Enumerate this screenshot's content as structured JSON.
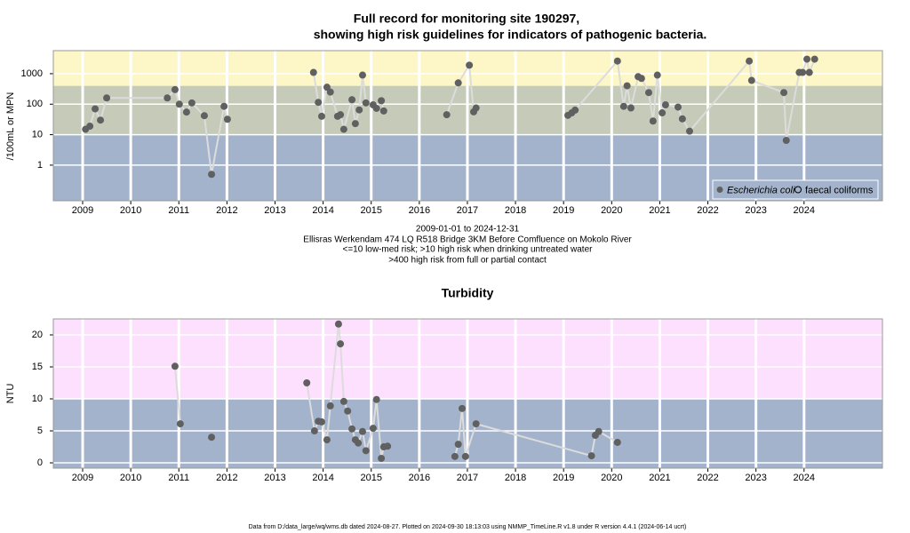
{
  "chart_data": [
    {
      "type": "line",
      "title": [
        "Full record for monitoring site 190297,",
        "showing high risk guidelines for indicators of pathogenic bacteria."
      ],
      "y_label": "/100mL or MPN",
      "notes": [
        "2009-01-01 to 2024-12-31",
        "Ellisras Werkendam 474 LQ R518 Bridge 3KM Before Comfluence on Mokolo River",
        "<=10 low-med risk; >10 high risk when drinking untreated water",
        ">400 high risk from full or partial contact"
      ],
      "log_y": true,
      "grid": true,
      "xlim": [
        2008.39,
        2025.63
      ],
      "xticks": [
        2009,
        2010,
        2011,
        2012,
        2013,
        2014,
        2015,
        2016,
        2017,
        2018,
        2019,
        2020,
        2021,
        2022,
        2023,
        2024
      ],
      "ylim": [
        0.068,
        5700
      ],
      "yticks": [
        1,
        10,
        100,
        1000
      ],
      "thresholds": [
        10,
        400
      ],
      "band_colors": [
        "#a3b3cc",
        "#c5cbb8",
        "#fdf6c6"
      ],
      "point_color": "#606060",
      "line_color": "#dcdcdc",
      "legend_position": "lower right",
      "legend": [
        {
          "label": "Escherichia coli",
          "marker": "filled"
        },
        {
          "label": "faecal coliforms",
          "marker": "open"
        }
      ],
      "x": [
        2009.06,
        2009.15,
        2009.26,
        2009.37,
        2009.5,
        2010.76,
        2010.92,
        2011.01,
        2011.16,
        2011.27,
        2011.53,
        2011.68,
        2011.94,
        2012.01,
        null,
        2013.8,
        2013.9,
        2013.97,
        2014.08,
        2014.15,
        2014.3,
        2014.36,
        2014.43,
        2014.6,
        2014.67,
        2014.75,
        2014.82,
        2014.89,
        2015.04,
        2015.11,
        2015.21,
        2015.26,
        null,
        2016.57,
        2016.81,
        2017.04,
        2017.13,
        2017.18,
        null,
        2019.09,
        2019.17,
        2019.24,
        2020.12,
        2020.25,
        2020.32,
        2020.4,
        2020.55,
        2020.62,
        2020.77,
        2020.86,
        2020.95,
        2021.05,
        2021.12,
        2021.38,
        2021.47,
        2021.62,
        2022.86,
        2022.91,
        2023.58,
        2023.63,
        2023.9,
        2023.97,
        2024.06,
        2024.11,
        2024.22
      ],
      "values": [
        15,
        19,
        70,
        30,
        160,
        160,
        300,
        100,
        55,
        110,
        42,
        0.5,
        85,
        32,
        null,
        1100,
        115,
        40,
        360,
        250,
        40,
        45,
        15,
        140,
        23,
        65,
        900,
        110,
        95,
        73,
        130,
        60,
        null,
        45,
        500,
        1900,
        56,
        75,
        null,
        43,
        52,
        64,
        2600,
        85,
        400,
        75,
        800,
        700,
        240,
        28,
        900,
        52,
        95,
        80,
        33,
        13,
        2600,
        600,
        240,
        6.5,
        1100,
        1100,
        3000,
        1100,
        3000
      ]
    },
    {
      "type": "line",
      "title": "Turbidity",
      "y_label": "NTU",
      "footer": "Data from D:/data_large/wq/wms.db dated 2024-08-27. Plotted on 2024-09-30 18:13:03 using NMMP_TimeLine.R v1.8 under R version 4.4.1 (2024-06-14 ucrt)",
      "log_y": false,
      "grid": true,
      "xlim": [
        2008.39,
        2025.63
      ],
      "xticks": [
        2009,
        2010,
        2011,
        2012,
        2013,
        2014,
        2015,
        2016,
        2017,
        2018,
        2019,
        2020,
        2021,
        2022,
        2023,
        2024
      ],
      "ylim": [
        -0.83,
        22.5
      ],
      "yticks": [
        0,
        5,
        10,
        15,
        20
      ],
      "thresholds": [
        10
      ],
      "band_colors": [
        "#a3b3cc",
        "#fde0fd"
      ],
      "point_color": "#606060",
      "line_color": "#dcdcdc",
      "x": [
        2010.92,
        2011.03,
        null,
        2011.68,
        null,
        2013.66,
        2013.82,
        2013.9,
        2013.97,
        2014.08,
        2014.15,
        2014.32,
        2014.36,
        2014.43,
        2014.51,
        2014.6,
        2014.67,
        2014.73,
        2014.82,
        2014.89,
        2015.04,
        2015.11,
        2015.21,
        2015.26,
        2015.34,
        null,
        2016.74,
        2016.81,
        2016.89,
        2016.96,
        2017.18,
        2019.58,
        2019.66,
        2019.73,
        2020.12
      ],
      "values": [
        15.1,
        6.1,
        null,
        4.0,
        null,
        12.5,
        5.0,
        6.5,
        6.4,
        3.6,
        8.9,
        21.7,
        18.6,
        9.6,
        8.1,
        5.3,
        3.6,
        3.1,
        4.9,
        1.9,
        5.4,
        9.9,
        0.7,
        2.5,
        2.6,
        null,
        1.0,
        2.9,
        8.5,
        1.0,
        6.1,
        1.1,
        4.3,
        4.9,
        3.2
      ]
    }
  ]
}
